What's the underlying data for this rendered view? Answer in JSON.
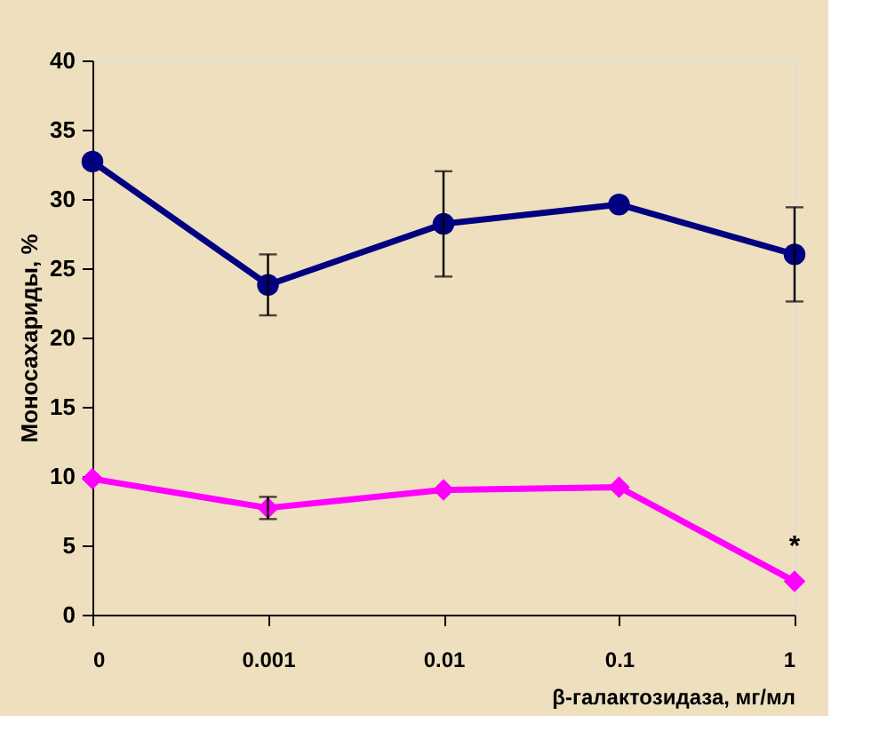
{
  "chart_data": {
    "type": "line",
    "xlabel": "β-галактозидаза, мг/мл",
    "ylabel": "Моносахариды, %",
    "categories": [
      "0",
      "0.001",
      "0.01",
      "0.1",
      "1"
    ],
    "series": [
      {
        "color": "#000080",
        "marker": "circle",
        "values": [
          32.7,
          23.8,
          28.2,
          29.6,
          26.0
        ],
        "errors": [
          null,
          2.2,
          3.8,
          null,
          3.4
        ]
      },
      {
        "color": "#ff00ff",
        "marker": "diamond",
        "values": [
          9.8,
          7.7,
          9.0,
          9.2,
          2.4
        ],
        "errors": [
          null,
          0.8,
          null,
          null,
          null
        ]
      }
    ],
    "ylim": [
      0,
      40
    ],
    "yticks": [
      0,
      5,
      10,
      15,
      20,
      25,
      30,
      35,
      40
    ],
    "grid": false,
    "annotations": [
      "*"
    ]
  }
}
